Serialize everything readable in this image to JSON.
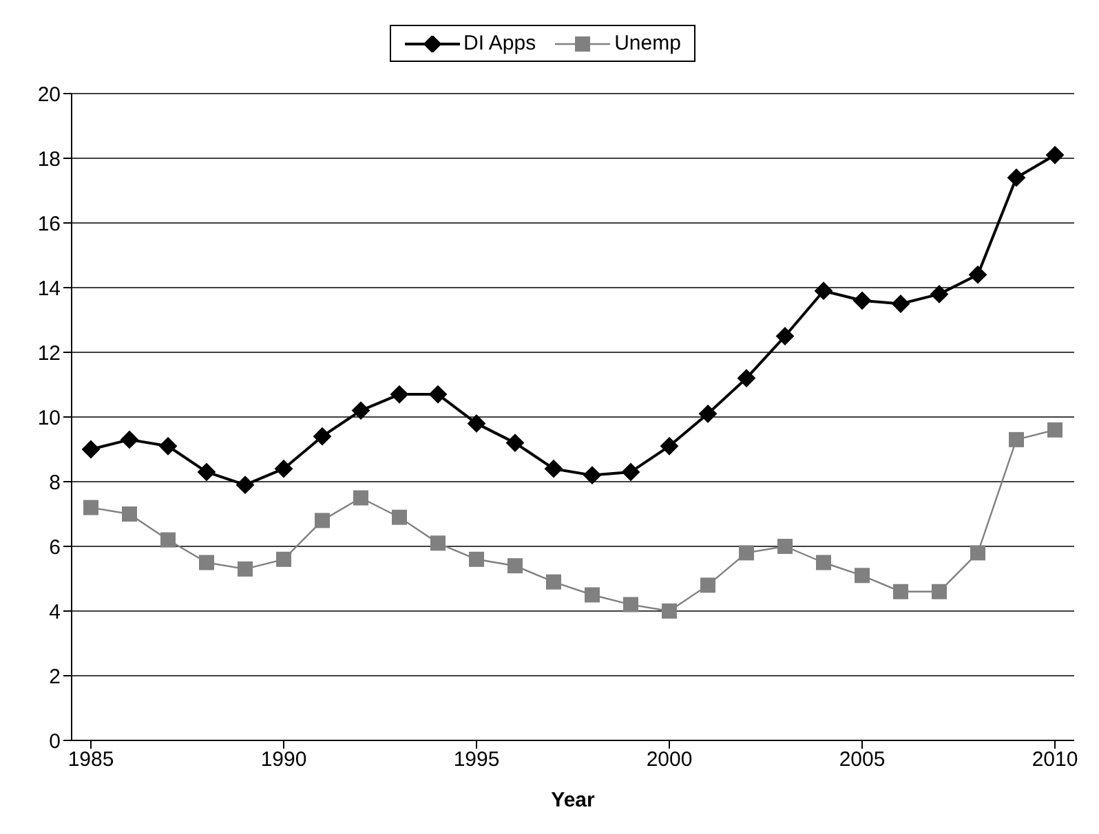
{
  "chart_data": {
    "type": "line",
    "xlabel": "Year",
    "x": [
      1985,
      1986,
      1987,
      1988,
      1989,
      1990,
      1991,
      1992,
      1993,
      1994,
      1995,
      1996,
      1997,
      1998,
      1999,
      2000,
      2001,
      2002,
      2003,
      2004,
      2005,
      2006,
      2007,
      2008,
      2009,
      2010
    ],
    "series": [
      {
        "name": "DI Apps",
        "color": "#000000",
        "marker": "diamond",
        "values": [
          9.0,
          9.3,
          9.1,
          8.3,
          7.9,
          8.4,
          9.4,
          10.2,
          10.7,
          10.7,
          9.8,
          9.2,
          8.4,
          8.2,
          8.3,
          9.1,
          10.1,
          11.2,
          12.5,
          13.9,
          13.6,
          13.5,
          13.8,
          14.4,
          17.4,
          18.1
        ]
      },
      {
        "name": "Unemp",
        "color": "#808080",
        "marker": "square",
        "values": [
          7.2,
          7.0,
          6.2,
          5.5,
          5.3,
          5.6,
          6.8,
          7.5,
          6.9,
          6.1,
          5.6,
          5.4,
          4.9,
          4.5,
          4.2,
          4.0,
          4.8,
          5.8,
          6.0,
          5.5,
          5.1,
          4.6,
          4.6,
          5.8,
          9.3,
          9.6
        ]
      }
    ],
    "xlim": [
      1984.5,
      2010.5
    ],
    "xticks": [
      1985,
      1990,
      1995,
      2000,
      2005,
      2010
    ],
    "ylim": [
      0,
      20
    ],
    "yticks": [
      0,
      2,
      4,
      6,
      8,
      10,
      12,
      14,
      16,
      18,
      20
    ],
    "grid": "y",
    "legend": "top",
    "line_style": "solid"
  }
}
